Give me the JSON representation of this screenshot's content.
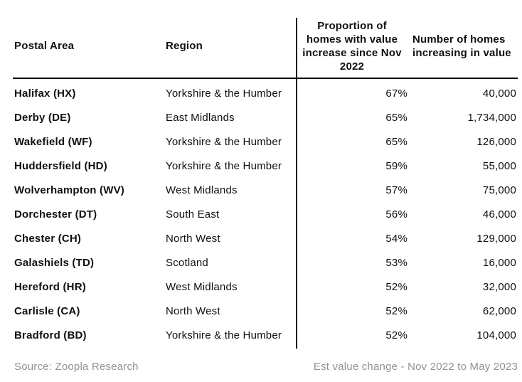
{
  "table": {
    "columns": [
      {
        "label": "Postal Area"
      },
      {
        "label": "Region"
      },
      {
        "label": "Proportion of\nhomes with value\nincrease since Nov\n2022"
      },
      {
        "label": "Number of homes\nincreasing in value"
      }
    ],
    "rows": [
      {
        "postal_area": "Halifax (HX)",
        "region": "Yorkshire & the Humber",
        "proportion": "67%",
        "homes": "40,000"
      },
      {
        "postal_area": "Derby (DE)",
        "region": "East Midlands",
        "proportion": "65%",
        "homes": "1,734,000"
      },
      {
        "postal_area": "Wakefield (WF)",
        "region": "Yorkshire & the Humber",
        "proportion": "65%",
        "homes": "126,000"
      },
      {
        "postal_area": "Huddersfield (HD)",
        "region": "Yorkshire & the Humber",
        "proportion": "59%",
        "homes": "55,000"
      },
      {
        "postal_area": "Wolverhampton (WV)",
        "region": "West Midlands",
        "proportion": "57%",
        "homes": "75,000"
      },
      {
        "postal_area": "Dorchester (DT)",
        "region": "South East",
        "proportion": "56%",
        "homes": "46,000"
      },
      {
        "postal_area": "Chester (CH)",
        "region": "North West",
        "proportion": "54%",
        "homes": "129,000"
      },
      {
        "postal_area": "Galashiels (TD)",
        "region": "Scotland",
        "proportion": "53%",
        "homes": "16,000"
      },
      {
        "postal_area": "Hereford (HR)",
        "region": "West Midlands",
        "proportion": "52%",
        "homes": "32,000"
      },
      {
        "postal_area": "Carlisle (CA)",
        "region": "North West",
        "proportion": "52%",
        "homes": "62,000"
      },
      {
        "postal_area": "Bradford (BD)",
        "region": "Yorkshire & the Humber",
        "proportion": "52%",
        "homes": "104,000"
      }
    ]
  },
  "footer": {
    "source": "Source: Zoopla Research",
    "note": "Est value change - Nov 2022 to May 2023"
  },
  "colors": {
    "text": "#101010",
    "muted_text": "#8e9297",
    "line": "#000000",
    "background": "#ffffff"
  }
}
